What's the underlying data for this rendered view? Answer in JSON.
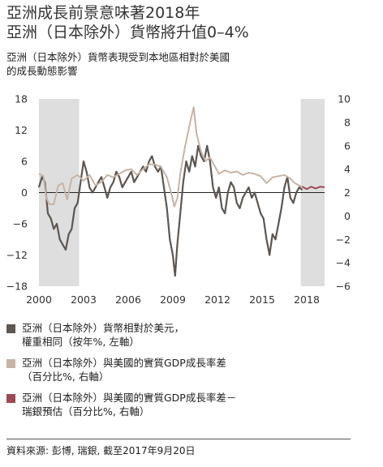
{
  "header": {
    "title_line1": "亞洲成長前景意味著2018年",
    "title_line2": "亞洲（日本除外）貨幣將升值0–4%",
    "subtitle_line1": "亞洲（日本除外）貨幣表現受到本地區相對於美國",
    "subtitle_line2": "的成長動態影響"
  },
  "legend": {
    "items": [
      {
        "label_line1": "亞洲（日本除外）貨幣相對於美元，",
        "label_line2": "權重相同（按年%, 左軸）",
        "color": "#5d5651"
      },
      {
        "label_line1": "亞洲（日本除外）與美國的實質GDP成長率差",
        "label_line2": "（百分比%, 右軸）",
        "color": "#c6b4a6"
      },
      {
        "label_line1": "亞洲（日本除外）與美國的實質GDP成長率差－",
        "label_line2": "瑞銀預估（百分比%, 右軸）",
        "color": "#9e4a55"
      }
    ]
  },
  "source": {
    "text": "資料來源: 彭博, 瑞銀, 截至2017年9月20日"
  },
  "chart_data": {
    "type": "line",
    "x_tick_labels": [
      "2000",
      "2003",
      "2006",
      "2009",
      "2012",
      "2015",
      "2018"
    ],
    "xlim": [
      2000,
      2019.2
    ],
    "left_axis": {
      "ylim": [
        -18,
        18
      ],
      "ticks": [
        "18",
        "12",
        "6",
        "0",
        "−6",
        "−12",
        "−18"
      ]
    },
    "right_axis": {
      "ylim": [
        -6,
        10
      ],
      "ticks": [
        "10",
        "8",
        "6",
        "4",
        "2",
        "0",
        "−2",
        "−4",
        "−6"
      ]
    },
    "shaded_regions": [
      [
        2000,
        2002.7
      ],
      [
        2017.6,
        2019.2
      ]
    ],
    "zero_line_left": 0,
    "series": [
      {
        "axis": "left",
        "color": "#5d5651",
        "points": [
          [
            2000.0,
            1
          ],
          [
            2000.2,
            3
          ],
          [
            2000.4,
            2
          ],
          [
            2000.6,
            -4
          ],
          [
            2000.8,
            -5
          ],
          [
            2001.0,
            -7
          ],
          [
            2001.2,
            -6
          ],
          [
            2001.4,
            -9
          ],
          [
            2001.6,
            -10
          ],
          [
            2001.8,
            -11
          ],
          [
            2002.0,
            -8
          ],
          [
            2002.2,
            -7
          ],
          [
            2002.4,
            -3
          ],
          [
            2002.6,
            -2
          ],
          [
            2002.8,
            2
          ],
          [
            2003.0,
            6
          ],
          [
            2003.2,
            4
          ],
          [
            2003.4,
            1
          ],
          [
            2003.6,
            0
          ],
          [
            2003.8,
            1
          ],
          [
            2004.0,
            2
          ],
          [
            2004.2,
            3
          ],
          [
            2004.4,
            1
          ],
          [
            2004.6,
            -1
          ],
          [
            2004.8,
            1
          ],
          [
            2005.0,
            2
          ],
          [
            2005.2,
            4
          ],
          [
            2005.4,
            3
          ],
          [
            2005.6,
            1
          ],
          [
            2005.8,
            2
          ],
          [
            2006.0,
            3
          ],
          [
            2006.2,
            4
          ],
          [
            2006.4,
            2
          ],
          [
            2006.6,
            3
          ],
          [
            2006.8,
            4
          ],
          [
            2007.0,
            5
          ],
          [
            2007.2,
            4
          ],
          [
            2007.4,
            6
          ],
          [
            2007.6,
            7
          ],
          [
            2007.8,
            5
          ],
          [
            2008.0,
            4
          ],
          [
            2008.2,
            5
          ],
          [
            2008.4,
            1
          ],
          [
            2008.6,
            -3
          ],
          [
            2008.8,
            -9
          ],
          [
            2009.0,
            -12
          ],
          [
            2009.15,
            -16
          ],
          [
            2009.3,
            -10
          ],
          [
            2009.5,
            -4
          ],
          [
            2009.7,
            2
          ],
          [
            2009.9,
            6
          ],
          [
            2010.1,
            4
          ],
          [
            2010.3,
            7
          ],
          [
            2010.5,
            5
          ],
          [
            2010.7,
            9
          ],
          [
            2010.9,
            7
          ],
          [
            2011.1,
            6
          ],
          [
            2011.3,
            9
          ],
          [
            2011.5,
            6
          ],
          [
            2011.7,
            1
          ],
          [
            2011.9,
            -1
          ],
          [
            2012.1,
            1
          ],
          [
            2012.3,
            -3
          ],
          [
            2012.5,
            -4
          ],
          [
            2012.7,
            0
          ],
          [
            2012.9,
            2
          ],
          [
            2013.1,
            1
          ],
          [
            2013.3,
            -2
          ],
          [
            2013.5,
            -3
          ],
          [
            2013.7,
            -1
          ],
          [
            2013.9,
            0
          ],
          [
            2014.1,
            1
          ],
          [
            2014.3,
            -1
          ],
          [
            2014.5,
            0
          ],
          [
            2014.7,
            -2
          ],
          [
            2014.9,
            -4
          ],
          [
            2015.1,
            -5
          ],
          [
            2015.3,
            -9
          ],
          [
            2015.5,
            -12
          ],
          [
            2015.7,
            -8
          ],
          [
            2015.9,
            -9
          ],
          [
            2016.1,
            -6
          ],
          [
            2016.3,
            -3
          ],
          [
            2016.5,
            1
          ],
          [
            2016.7,
            3
          ],
          [
            2016.9,
            -1
          ],
          [
            2017.1,
            -2
          ],
          [
            2017.3,
            0
          ],
          [
            2017.5,
            1
          ],
          [
            2017.7,
            0.5
          ]
        ]
      },
      {
        "axis": "right",
        "color": "#c6b4a6",
        "points": [
          [
            2000.0,
            3.6
          ],
          [
            2000.3,
            3.4
          ],
          [
            2000.5,
            1.5
          ],
          [
            2000.7,
            1
          ],
          [
            2001.0,
            1
          ],
          [
            2001.3,
            2.6
          ],
          [
            2001.6,
            2.8
          ],
          [
            2001.9,
            1.4
          ],
          [
            2002.2,
            3.2
          ],
          [
            2002.6,
            3.5
          ],
          [
            2003.0,
            3
          ],
          [
            2003.4,
            3.5
          ],
          [
            2003.8,
            2.6
          ],
          [
            2004.2,
            2.9
          ],
          [
            2004.6,
            3.5
          ],
          [
            2005.0,
            3.3
          ],
          [
            2005.4,
            3.6
          ],
          [
            2005.8,
            3.9
          ],
          [
            2006.2,
            4
          ],
          [
            2006.6,
            3.5
          ],
          [
            2007.0,
            4
          ],
          [
            2007.4,
            4.4
          ],
          [
            2007.8,
            4.4
          ],
          [
            2008.2,
            4.2
          ],
          [
            2008.6,
            3.3
          ],
          [
            2008.9,
            1.9
          ],
          [
            2009.1,
            0.8
          ],
          [
            2009.3,
            1.5
          ],
          [
            2009.5,
            3.6
          ],
          [
            2009.8,
            5.8
          ],
          [
            2010.0,
            7
          ],
          [
            2010.2,
            8.2
          ],
          [
            2010.4,
            9.3
          ],
          [
            2010.6,
            7
          ],
          [
            2010.9,
            5.5
          ],
          [
            2011.2,
            4.7
          ],
          [
            2011.5,
            5
          ],
          [
            2011.8,
            4.3
          ],
          [
            2012.1,
            3.6
          ],
          [
            2012.5,
            3.9
          ],
          [
            2012.9,
            3.7
          ],
          [
            2013.3,
            3.8
          ],
          [
            2013.7,
            3.5
          ],
          [
            2014.1,
            3.7
          ],
          [
            2014.5,
            3.6
          ],
          [
            2014.9,
            3.4
          ],
          [
            2015.3,
            2.8
          ],
          [
            2015.7,
            3.3
          ],
          [
            2016.1,
            3.4
          ],
          [
            2016.5,
            3.5
          ],
          [
            2016.9,
            3.2
          ],
          [
            2017.2,
            2.8
          ],
          [
            2017.5,
            2.6
          ],
          [
            2017.7,
            2.5
          ]
        ]
      },
      {
        "axis": "right",
        "color": "#9e4a55",
        "points": [
          [
            2017.7,
            2.5
          ],
          [
            2018.0,
            2.3
          ],
          [
            2018.3,
            2.5
          ],
          [
            2018.6,
            2.35
          ],
          [
            2018.9,
            2.5
          ],
          [
            2019.2,
            2.45
          ]
        ]
      }
    ]
  }
}
